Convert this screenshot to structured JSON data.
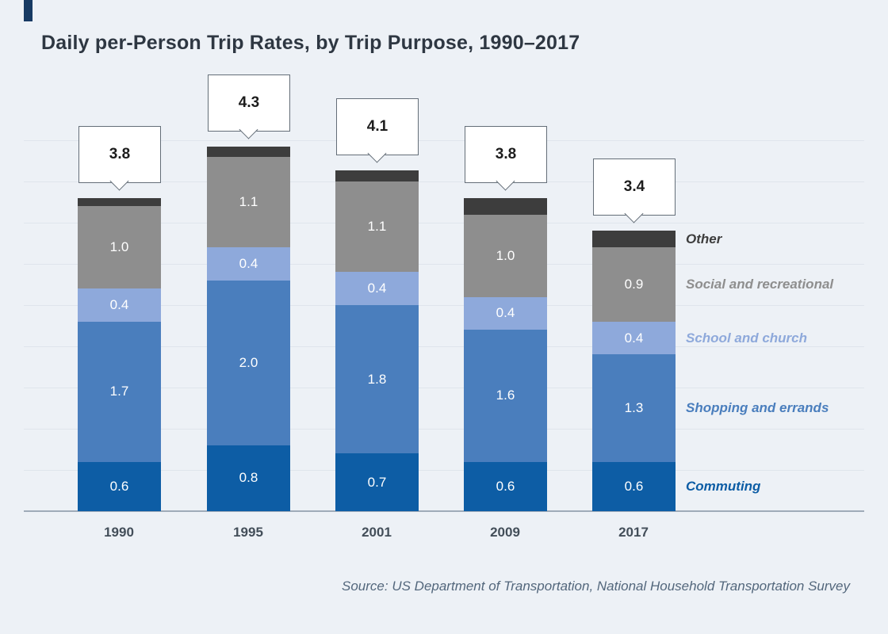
{
  "page": {
    "title": "Daily per-Person Trip Rates, by Trip Purpose, 1990–2017",
    "source": "Source: US Department of Transportation, National Household Transportation Survey"
  },
  "chart_data": {
    "type": "bar",
    "stacked": true,
    "title": "Daily per-Person Trip Rates, by Trip Purpose, 1990–2017",
    "categories": [
      "1990",
      "1995",
      "2001",
      "2009",
      "2017"
    ],
    "series": [
      {
        "name": "Commuting",
        "color": "#0d5da5",
        "values": [
          0.6,
          0.8,
          0.7,
          0.6,
          0.6
        ],
        "labeled": true
      },
      {
        "name": "Shopping and errands",
        "color": "#4a7ebd",
        "values": [
          1.7,
          2.0,
          1.8,
          1.6,
          1.3
        ],
        "labeled": true
      },
      {
        "name": "School and church",
        "color": "#8ea9db",
        "values": [
          0.4,
          0.4,
          0.4,
          0.4,
          0.4
        ],
        "labeled": true
      },
      {
        "name": "Social and recreational",
        "color": "#8e8e8e",
        "values": [
          1.0,
          1.1,
          1.1,
          1.0,
          0.9
        ],
        "labeled": true
      },
      {
        "name": "Other",
        "color": "#3d3d3d",
        "values": [
          0.1,
          0.12,
          0.13,
          0.2,
          0.2
        ],
        "labeled": false,
        "values_estimated": true
      }
    ],
    "totals": [
      3.8,
      4.3,
      4.1,
      3.8,
      3.4
    ],
    "ylim": [
      0,
      4.6
    ],
    "grid": true,
    "legend_position": "right-of-last-bar",
    "source": "Source: US Department of Transportation, National Household Transportation Survey"
  }
}
